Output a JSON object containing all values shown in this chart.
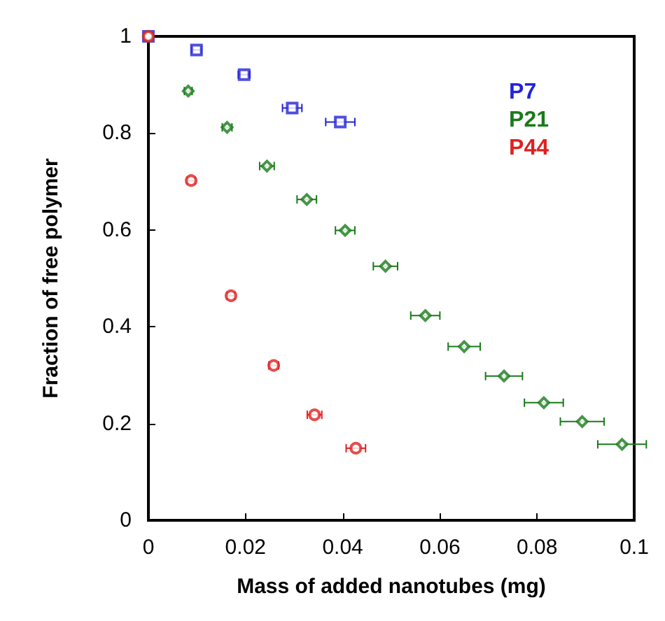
{
  "chart_data": {
    "type": "scatter",
    "xlabel": "Mass of added nanotubes (mg)",
    "ylabel": "Fraction of free polymer",
    "xlim": [
      0,
      0.1
    ],
    "xticks": [
      0,
      0.02,
      0.04,
      0.06,
      0.08,
      0.1
    ],
    "ylim": [
      0,
      1
    ],
    "yticks": [
      0,
      0.2,
      0.4,
      0.6,
      0.8,
      1
    ],
    "grid": false,
    "legend": "top right",
    "series": [
      {
        "name": "P7",
        "color": "#2323d8",
        "marker": "square",
        "x": [
          0,
          0.0099,
          0.0197,
          0.0296,
          0.0395
        ],
        "values": [
          1,
          0.972,
          0.921,
          0.852,
          0.823
        ],
        "xerrors": [
          null,
          0.001,
          0.0012,
          0.002,
          0.003
        ]
      },
      {
        "name": "P21",
        "color": "#1a7a1a",
        "marker": "diamond",
        "x": [
          0,
          0.0082,
          0.0162,
          0.0244,
          0.0326,
          0.0405,
          0.0488,
          0.057,
          0.065,
          0.0732,
          0.0814,
          0.0893,
          0.0975
        ],
        "values": [
          1,
          0.887,
          0.812,
          0.732,
          0.663,
          0.599,
          0.525,
          0.423,
          0.359,
          0.298,
          0.243,
          0.204,
          0.157
        ],
        "xerrors": [
          null,
          0.0008,
          0.001,
          0.0015,
          0.002,
          0.002,
          0.0025,
          0.003,
          0.0033,
          0.0038,
          0.004,
          0.0045,
          0.005
        ]
      },
      {
        "name": "P44",
        "color": "#e02020",
        "marker": "circle",
        "x": [
          0,
          0.0088,
          0.017,
          0.0258,
          0.0342,
          0.0427
        ],
        "values": [
          1,
          0.702,
          0.464,
          0.32,
          0.218,
          0.149
        ],
        "xerrors": [
          null,
          0.0008,
          0.0008,
          0.001,
          0.0015,
          0.002
        ]
      }
    ]
  }
}
